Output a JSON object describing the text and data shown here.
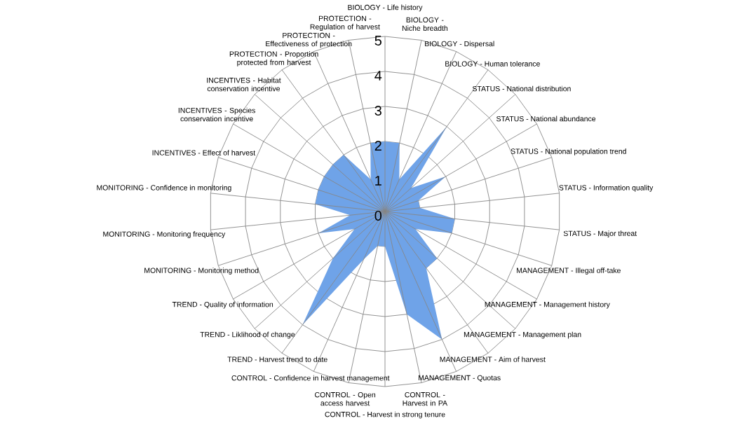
{
  "chart_data": {
    "type": "radar",
    "categories": [
      "BIOLOGY - Life history",
      "BIOLOGY - Niche breadth",
      "BIOLOGY - Dispersal",
      "BIOLOGY - Human tolerance",
      "STATUS - National distribution",
      "STATUS - National abundance",
      "STATUS - National population trend",
      "STATUS - Information quality",
      "STATUS - Major threat",
      "MANAGEMENT - Illegal off-take",
      "MANAGEMENT - Management history",
      "MANAGEMENT - Management plan",
      "MANAGEMENT - Aim of harvest",
      "MANAGEMENT - Quotas",
      "CONTROL - Harvest in PA",
      "CONTROL - Harvest in strong tenure",
      "CONTROL - Open access harvest",
      "CONTROL - Confidence in harvest management",
      "TREND - Harvest trend to date",
      "TREND - Liklihood of change",
      "TREND - Quality of information",
      "MONITORING - Monitoring method",
      "MONITORING - Monitoring frequency",
      "MONITORING - Confidence in monitoring",
      "INCENTIVES - Effect of harvest",
      "INCENTIVES - Species conservation incentive",
      "INCENTIVES - Habitat conservation incentive",
      "PROTECTION - Proportion protected from harvest",
      "PROTECTION - Effectiveness of protection",
      "PROTECTION - Regulation of harvest"
    ],
    "series": [
      {
        "color": "#6fa3e8",
        "values": [
          2,
          2,
          1,
          3,
          1,
          2,
          1,
          1,
          2,
          2,
          1,
          2,
          2,
          4,
          3,
          1,
          1,
          1.5,
          4,
          2,
          1,
          2,
          1,
          2,
          2,
          2,
          2,
          2,
          1,
          2
        ]
      }
    ],
    "ylim": [
      0,
      5
    ],
    "yticks": [
      0,
      1,
      2,
      3,
      4,
      5
    ],
    "grid": true
  }
}
